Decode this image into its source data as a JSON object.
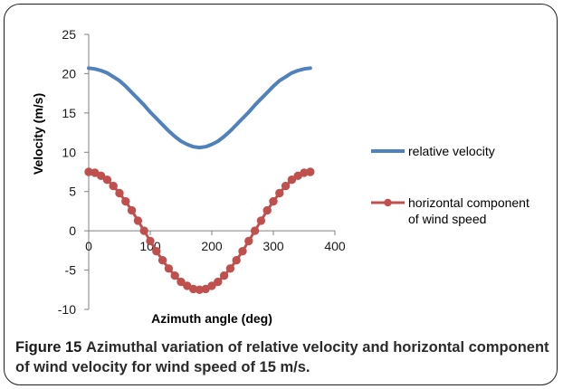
{
  "caption": {
    "figure_label": "Figure 15",
    "text": "Azimuthal variation of relative velocity and horizontal component of wind velocity for wind speed of 15 m/s."
  },
  "chart_data": {
    "type": "line",
    "xlabel": "Azimuth angle (deg)",
    "ylabel": "Velocity (m/s)",
    "xlim": [
      0,
      400
    ],
    "ylim": [
      -10,
      25
    ],
    "xticks": [
      0,
      100,
      200,
      300,
      400
    ],
    "yticks": [
      25,
      20,
      15,
      10,
      5,
      0,
      -5,
      -10
    ],
    "grid": false,
    "legend_position": "right",
    "series": [
      {
        "name": "relative velocity",
        "color": "#4f81bd",
        "markers": false,
        "x": [
          0,
          10,
          20,
          30,
          40,
          50,
          60,
          70,
          80,
          90,
          100,
          110,
          120,
          130,
          140,
          150,
          160,
          170,
          180,
          190,
          200,
          210,
          220,
          230,
          240,
          250,
          260,
          270,
          280,
          290,
          300,
          310,
          320,
          330,
          340,
          350,
          360
        ],
        "y": [
          20.7,
          20.6,
          20.4,
          20.1,
          19.6,
          19.1,
          18.4,
          17.6,
          16.8,
          16.0,
          15.1,
          14.3,
          13.5,
          12.7,
          12.0,
          11.4,
          11.0,
          10.7,
          10.6,
          10.7,
          11.0,
          11.4,
          12.0,
          12.7,
          13.5,
          14.3,
          15.1,
          16.0,
          16.8,
          17.6,
          18.4,
          19.1,
          19.6,
          20.1,
          20.4,
          20.6,
          20.7
        ]
      },
      {
        "name": "horizontal component of wind speed",
        "legend_lines": [
          "horizontal component",
          "of wind speed"
        ],
        "color": "#c0504d",
        "markers": true,
        "x": [
          0,
          10,
          20,
          30,
          40,
          50,
          60,
          70,
          80,
          90,
          100,
          110,
          120,
          130,
          140,
          150,
          160,
          170,
          180,
          190,
          200,
          210,
          220,
          230,
          240,
          250,
          260,
          270,
          280,
          290,
          300,
          310,
          320,
          330,
          340,
          350,
          360
        ],
        "y": [
          7.5,
          7.4,
          7.0,
          6.5,
          5.7,
          4.8,
          3.75,
          2.6,
          1.3,
          0.0,
          -1.3,
          -2.6,
          -3.75,
          -4.8,
          -5.7,
          -6.5,
          -7.0,
          -7.4,
          -7.5,
          -7.4,
          -7.0,
          -6.5,
          -5.7,
          -4.8,
          -3.75,
          -2.6,
          -1.3,
          0.0,
          1.3,
          2.6,
          3.75,
          4.8,
          5.7,
          6.5,
          7.0,
          7.4,
          7.5
        ]
      }
    ]
  }
}
